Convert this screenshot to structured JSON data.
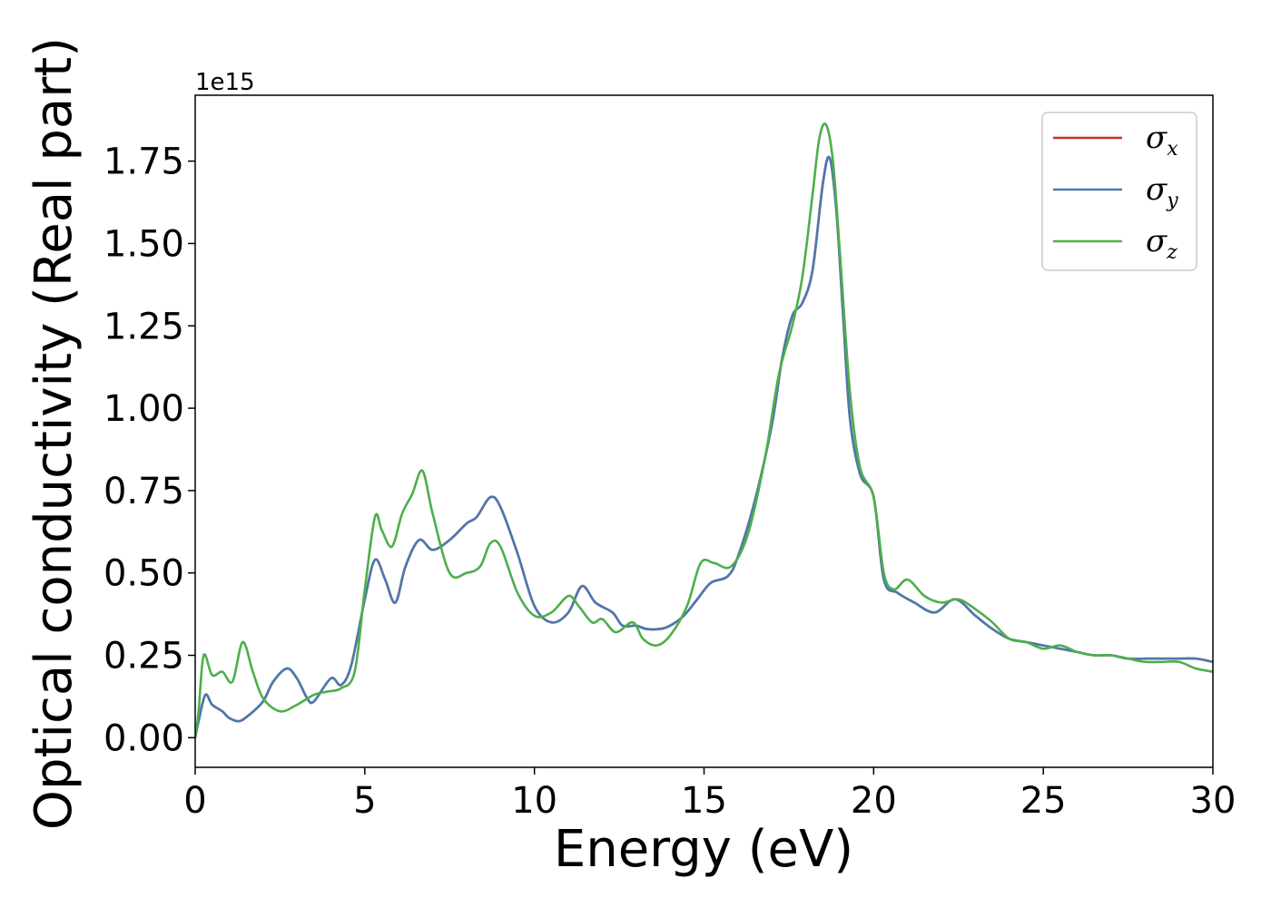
{
  "chart_data": {
    "type": "line",
    "title": "",
    "xlabel": "Energy (eV)",
    "ylabel": "Optical conductivity (Real part)",
    "y_offset_label": "1e15",
    "xlim": [
      0,
      30
    ],
    "ylim": [
      -0.09,
      1.95
    ],
    "x_ticks": [
      0,
      5,
      10,
      15,
      20,
      25,
      30
    ],
    "x_tick_labels": [
      "0",
      "5",
      "10",
      "15",
      "20",
      "25",
      "30"
    ],
    "y_ticks": [
      0.0,
      0.25,
      0.5,
      0.75,
      1.0,
      1.25,
      1.5,
      1.75
    ],
    "y_tick_labels": [
      "0.00",
      "0.25",
      "0.50",
      "0.75",
      "1.00",
      "1.25",
      "1.50",
      "1.75"
    ],
    "grid": false,
    "legend_position": "top-right",
    "series": [
      {
        "name": "σx",
        "legend_symbol": "σ",
        "legend_sub": "x",
        "color": "#d62728",
        "x": [
          0,
          0.1,
          0.3,
          0.5,
          0.8,
          1.0,
          1.3,
          1.6,
          2.0,
          2.3,
          2.7,
          3.0,
          3.3,
          3.5,
          4.0,
          4.3,
          4.6,
          5.0,
          5.3,
          5.6,
          5.9,
          6.2,
          6.6,
          7.0,
          7.5,
          8.0,
          8.3,
          8.7,
          9.0,
          9.5,
          10.0,
          10.5,
          11.0,
          11.4,
          11.8,
          12.3,
          12.6,
          13.0,
          13.3,
          13.7,
          14.0,
          14.4,
          14.8,
          15.2,
          15.7,
          16.0,
          16.5,
          17.0,
          17.3,
          17.6,
          17.9,
          18.2,
          18.5,
          18.7,
          18.9,
          19.1,
          19.3,
          19.6,
          20.0,
          20.3,
          20.7,
          21.2,
          21.8,
          22.4,
          23.0,
          23.5,
          24.0,
          24.5,
          25.0,
          25.5,
          26.0,
          26.5,
          27.0,
          27.5,
          28.0,
          28.5,
          29.0,
          29.5,
          30.0
        ],
        "values": [
          0.0,
          0.05,
          0.13,
          0.1,
          0.08,
          0.06,
          0.05,
          0.07,
          0.11,
          0.17,
          0.21,
          0.18,
          0.12,
          0.11,
          0.18,
          0.16,
          0.22,
          0.42,
          0.54,
          0.48,
          0.41,
          0.52,
          0.6,
          0.57,
          0.6,
          0.65,
          0.67,
          0.73,
          0.7,
          0.56,
          0.4,
          0.35,
          0.38,
          0.46,
          0.41,
          0.38,
          0.34,
          0.34,
          0.33,
          0.33,
          0.34,
          0.37,
          0.42,
          0.47,
          0.49,
          0.55,
          0.72,
          0.95,
          1.15,
          1.28,
          1.32,
          1.42,
          1.68,
          1.76,
          1.6,
          1.28,
          0.97,
          0.8,
          0.73,
          0.48,
          0.44,
          0.41,
          0.38,
          0.42,
          0.37,
          0.33,
          0.3,
          0.29,
          0.28,
          0.27,
          0.26,
          0.25,
          0.25,
          0.24,
          0.24,
          0.24,
          0.24,
          0.24,
          0.23
        ]
      },
      {
        "name": "σy",
        "legend_symbol": "σ",
        "legend_sub": "y",
        "color": "#4a79b0",
        "x": [
          0,
          0.1,
          0.3,
          0.5,
          0.8,
          1.0,
          1.3,
          1.6,
          2.0,
          2.3,
          2.7,
          3.0,
          3.3,
          3.5,
          4.0,
          4.3,
          4.6,
          5.0,
          5.3,
          5.6,
          5.9,
          6.2,
          6.6,
          7.0,
          7.5,
          8.0,
          8.3,
          8.7,
          9.0,
          9.5,
          10.0,
          10.5,
          11.0,
          11.4,
          11.8,
          12.3,
          12.6,
          13.0,
          13.3,
          13.7,
          14.0,
          14.4,
          14.8,
          15.2,
          15.7,
          16.0,
          16.5,
          17.0,
          17.3,
          17.6,
          17.9,
          18.2,
          18.5,
          18.7,
          18.9,
          19.1,
          19.3,
          19.6,
          20.0,
          20.3,
          20.7,
          21.2,
          21.8,
          22.4,
          23.0,
          23.5,
          24.0,
          24.5,
          25.0,
          25.5,
          26.0,
          26.5,
          27.0,
          27.5,
          28.0,
          28.5,
          29.0,
          29.5,
          30.0
        ],
        "values": [
          0.0,
          0.05,
          0.13,
          0.1,
          0.08,
          0.06,
          0.05,
          0.07,
          0.11,
          0.17,
          0.21,
          0.18,
          0.12,
          0.11,
          0.18,
          0.16,
          0.22,
          0.42,
          0.54,
          0.48,
          0.41,
          0.52,
          0.6,
          0.57,
          0.6,
          0.65,
          0.67,
          0.73,
          0.7,
          0.56,
          0.4,
          0.35,
          0.38,
          0.46,
          0.41,
          0.38,
          0.34,
          0.34,
          0.33,
          0.33,
          0.34,
          0.37,
          0.42,
          0.47,
          0.49,
          0.55,
          0.72,
          0.95,
          1.15,
          1.28,
          1.32,
          1.42,
          1.68,
          1.76,
          1.6,
          1.28,
          0.97,
          0.8,
          0.73,
          0.48,
          0.44,
          0.41,
          0.38,
          0.42,
          0.37,
          0.33,
          0.3,
          0.29,
          0.28,
          0.27,
          0.26,
          0.25,
          0.25,
          0.24,
          0.24,
          0.24,
          0.24,
          0.24,
          0.23
        ]
      },
      {
        "name": "σz",
        "legend_symbol": "σ",
        "legend_sub": "z",
        "color": "#4daf4a",
        "x": [
          0,
          0.1,
          0.25,
          0.5,
          0.8,
          1.1,
          1.4,
          1.7,
          2.0,
          2.5,
          3.0,
          3.5,
          3.9,
          4.3,
          4.7,
          5.0,
          5.3,
          5.5,
          5.8,
          6.1,
          6.4,
          6.7,
          7.0,
          7.5,
          8.0,
          8.4,
          8.7,
          9.0,
          9.5,
          10.0,
          10.5,
          11.0,
          11.3,
          11.7,
          12.0,
          12.4,
          12.9,
          13.2,
          13.6,
          14.0,
          14.5,
          14.9,
          15.3,
          15.8,
          16.3,
          16.8,
          17.2,
          17.6,
          17.9,
          18.2,
          18.4,
          18.6,
          18.8,
          19.0,
          19.3,
          19.6,
          20.0,
          20.3,
          20.6,
          21.0,
          21.5,
          22.0,
          22.5,
          23.0,
          23.5,
          24.0,
          24.5,
          25.0,
          25.5,
          26.0,
          26.5,
          27.0,
          27.5,
          28.0,
          28.5,
          29.0,
          29.5,
          30.0
        ],
        "values": [
          0.0,
          0.08,
          0.25,
          0.19,
          0.2,
          0.17,
          0.29,
          0.2,
          0.12,
          0.08,
          0.1,
          0.13,
          0.14,
          0.15,
          0.2,
          0.45,
          0.67,
          0.63,
          0.58,
          0.68,
          0.74,
          0.81,
          0.68,
          0.5,
          0.5,
          0.52,
          0.59,
          0.58,
          0.44,
          0.37,
          0.38,
          0.43,
          0.4,
          0.35,
          0.36,
          0.32,
          0.35,
          0.3,
          0.28,
          0.31,
          0.4,
          0.53,
          0.53,
          0.52,
          0.62,
          0.85,
          1.1,
          1.25,
          1.4,
          1.65,
          1.82,
          1.86,
          1.75,
          1.48,
          1.05,
          0.82,
          0.73,
          0.5,
          0.45,
          0.48,
          0.43,
          0.41,
          0.42,
          0.39,
          0.35,
          0.3,
          0.29,
          0.27,
          0.28,
          0.26,
          0.25,
          0.25,
          0.24,
          0.23,
          0.23,
          0.23,
          0.21,
          0.2
        ]
      }
    ]
  }
}
